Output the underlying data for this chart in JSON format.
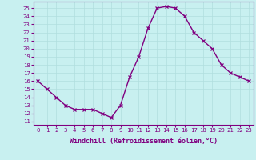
{
  "x": [
    0,
    1,
    2,
    3,
    4,
    5,
    6,
    7,
    8,
    9,
    10,
    11,
    12,
    13,
    14,
    15,
    16,
    17,
    18,
    19,
    20,
    21,
    22,
    23
  ],
  "y": [
    16,
    15,
    14,
    13,
    12.5,
    12.5,
    12.5,
    12,
    11.5,
    13,
    16.5,
    19,
    22.5,
    25,
    25.2,
    25,
    24,
    22,
    21,
    20,
    18,
    17,
    16.5,
    16
  ],
  "line_color": "#800080",
  "marker_color": "#800080",
  "bg_color": "#c8f0f0",
  "grid_color": "#b0dede",
  "xlabel": "Windchill (Refroidissement éolien,°C)",
  "ylabel_ticks": [
    11,
    12,
    13,
    14,
    15,
    16,
    17,
    18,
    19,
    20,
    21,
    22,
    23,
    24,
    25
  ],
  "ylim": [
    10.6,
    25.8
  ],
  "xlim": [
    -0.5,
    23.5
  ],
  "xticks": [
    0,
    1,
    2,
    3,
    4,
    5,
    6,
    7,
    8,
    9,
    10,
    11,
    12,
    13,
    14,
    15,
    16,
    17,
    18,
    19,
    20,
    21,
    22,
    23
  ],
  "label_fontsize": 6.0,
  "tick_fontsize": 5.2,
  "line_width": 1.0,
  "marker_size": 2.8
}
